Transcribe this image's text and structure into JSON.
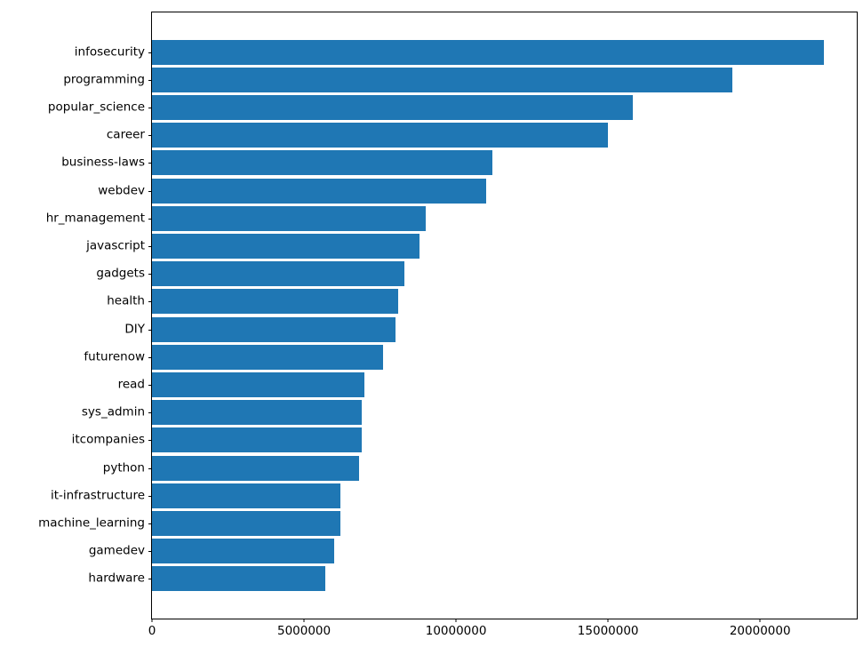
{
  "chart_data": {
    "type": "bar",
    "orientation": "horizontal",
    "title": "",
    "xlabel": "",
    "ylabel": "",
    "grid": false,
    "legend_position": "none",
    "bar_color": "#1f77b4",
    "xlim": [
      0,
      23180000
    ],
    "categories": [
      "infosecurity",
      "programming",
      "popular_science",
      "career",
      "business-laws",
      "webdev",
      "hr_management",
      "javascript",
      "gadgets",
      "health",
      "DIY",
      "futurenow",
      "read",
      "sys_admin",
      "itcompanies",
      "python",
      "it-infrastructure",
      "machine_learning",
      "gamedev",
      "hardware"
    ],
    "values": [
      22100000,
      19100000,
      15800000,
      15000000,
      11200000,
      11000000,
      9000000,
      8800000,
      8300000,
      8100000,
      8000000,
      7600000,
      7000000,
      6900000,
      6900000,
      6800000,
      6200000,
      6200000,
      6000000,
      5700000
    ],
    "xticks": [
      {
        "value": 0,
        "label": "0"
      },
      {
        "value": 5000000,
        "label": "5000000"
      },
      {
        "value": 10000000,
        "label": "10000000"
      },
      {
        "value": 15000000,
        "label": "15000000"
      },
      {
        "value": 20000000,
        "label": "20000000"
      }
    ]
  }
}
